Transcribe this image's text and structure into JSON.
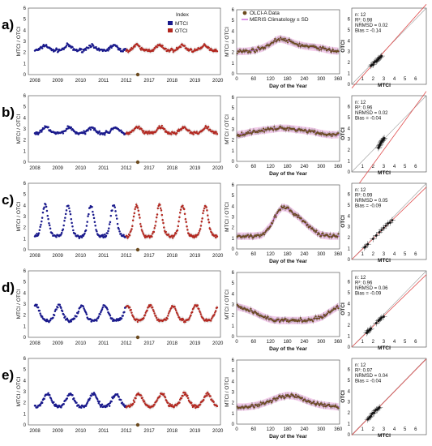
{
  "colors": {
    "mtci": "#1a1a8c",
    "otci": "#b3261e",
    "olci_point": "#6b4a1e",
    "meris_line": "#c44ed6",
    "meris_band": "#f0c0e6",
    "fit_line": "#e05050",
    "one_to_one": "#9a9a9a",
    "panel_border": "#444444"
  },
  "legends": {
    "time_series": {
      "title": "Index",
      "items": [
        "MTCI",
        "OTCI"
      ]
    },
    "climatology": {
      "items": [
        "OLCI-A Data",
        "MERIS Climatology ± SD"
      ]
    }
  },
  "axes": {
    "ts_ylabel": "MTCI / OTCI",
    "clim_ylabel": "MTCI / OTCI",
    "clim_xlabel": "Day of the Year",
    "sc_xlabel": "MTCI",
    "sc_ylabel": "OTCI",
    "ts_yticks": [
      "0",
      "1",
      "2",
      "3",
      "4",
      "5",
      "6"
    ],
    "ts_xticks": [
      "2008",
      "2009",
      "2010",
      "2011",
      "2012",
      "2017",
      "2018",
      "2019",
      "2020"
    ],
    "clim_xticks": [
      "0",
      "60",
      "120",
      "180",
      "240",
      "300",
      "360"
    ],
    "clim_yticks": [
      "0",
      "1",
      "2",
      "3",
      "4",
      "5",
      "6"
    ],
    "sc_ticks": [
      "0",
      "1",
      "2",
      "3",
      "4",
      "5",
      "6"
    ]
  },
  "chart_data": [
    {
      "panel": "a",
      "type": "scatter",
      "stats": {
        "n": "n: 12",
        "r2": "R²: 0.98",
        "nrmsd": "NRMSD = 0.02",
        "bias": "Bias = -0.14"
      },
      "timeseries": {
        "baseline": 2.2,
        "amplitude": 0.45,
        "peak_fraction": 0.45,
        "width_fraction": 0.3,
        "ylim": [
          0,
          6
        ]
      },
      "climatology": {
        "doy": [
          1,
          30,
          60,
          90,
          120,
          150,
          165,
          180,
          210,
          240,
          270,
          300,
          330,
          365
        ],
        "values": [
          2.1,
          2.1,
          2.2,
          2.4,
          2.8,
          3.3,
          3.2,
          3.1,
          2.8,
          2.6,
          2.5,
          2.4,
          2.2,
          2.1
        ]
      },
      "scatter": {
        "x": [
          1.8,
          1.9,
          2.0,
          2.1,
          2.2,
          2.3,
          2.4,
          2.5,
          2.5,
          2.6,
          2.7,
          2.8
        ],
        "y": [
          1.7,
          1.8,
          1.8,
          2.0,
          2.1,
          2.1,
          2.2,
          2.3,
          2.4,
          2.4,
          2.5,
          2.6
        ],
        "fit_slope": 1.1,
        "fit_intercept": -0.35
      }
    },
    {
      "panel": "b",
      "type": "scatter",
      "stats": {
        "n": "n: 12",
        "r2": "R²: 0.96",
        "nrmsd": "NRMSD = 0.02",
        "bias": "Bias = -0.04"
      },
      "timeseries": {
        "baseline": 2.6,
        "amplitude": 0.55,
        "peak_fraction": 0.5,
        "width_fraction": 0.35,
        "ylim": [
          0,
          6
        ]
      },
      "climatology": {
        "doy": [
          1,
          30,
          60,
          90,
          120,
          150,
          180,
          210,
          240,
          270,
          300,
          330,
          365
        ],
        "values": [
          2.5,
          2.6,
          2.8,
          2.9,
          3.0,
          3.1,
          3.1,
          3.0,
          2.9,
          2.8,
          2.6,
          2.5,
          2.5
        ]
      },
      "scatter": {
        "x": [
          2.5,
          2.55,
          2.6,
          2.65,
          2.7,
          2.75,
          2.8,
          2.85,
          2.9,
          2.95,
          3.0,
          3.05
        ],
        "y": [
          2.2,
          2.3,
          2.4,
          2.5,
          2.6,
          2.7,
          2.8,
          2.85,
          2.9,
          3.0,
          3.0,
          3.1
        ],
        "fit_slope": 1.7,
        "fit_intercept": -2.0
      }
    },
    {
      "panel": "c",
      "type": "scatter",
      "stats": {
        "n": "n: 12",
        "r2": "R²: 0.99",
        "nrmsd": "NRMSD = 0.05",
        "bias": "Bias = -0.09"
      },
      "timeseries": {
        "baseline": 1.2,
        "amplitude": 2.8,
        "peak_fraction": 0.45,
        "width_fraction": 0.3,
        "ylim": [
          0,
          6
        ]
      },
      "climatology": {
        "doy": [
          1,
          30,
          60,
          90,
          120,
          140,
          160,
          180,
          200,
          220,
          240,
          270,
          300,
          330,
          365
        ],
        "values": [
          1.2,
          1.2,
          1.2,
          1.3,
          2.2,
          3.2,
          3.9,
          3.8,
          3.4,
          3.0,
          2.5,
          1.8,
          1.3,
          1.2,
          1.2
        ]
      },
      "scatter": {
        "x": [
          1.2,
          1.3,
          1.5,
          2.0,
          2.3,
          2.6,
          2.8,
          3.0,
          3.2,
          3.4,
          3.6,
          3.8
        ],
        "y": [
          1.1,
          1.2,
          1.4,
          1.9,
          2.2,
          2.5,
          2.7,
          2.9,
          3.1,
          3.3,
          3.4,
          3.6
        ],
        "fit_slope": 0.95,
        "fit_intercept": -0.0
      }
    },
    {
      "panel": "d",
      "type": "scatter",
      "stats": {
        "n": "n: 12",
        "r2": "R²: 0.96",
        "nrmsd": "NRMSD = 0.06",
        "bias": "Bias = -0.09"
      },
      "timeseries": {
        "baseline": 1.5,
        "amplitude": 1.4,
        "peak_fraction": 0.05,
        "width_fraction": 0.35,
        "ylim": [
          0,
          6
        ]
      },
      "climatology": {
        "doy": [
          1,
          30,
          60,
          90,
          120,
          150,
          180,
          210,
          240,
          270,
          300,
          330,
          365
        ],
        "values": [
          2.8,
          2.6,
          2.3,
          1.9,
          1.6,
          1.5,
          1.5,
          1.5,
          1.5,
          1.6,
          1.8,
          2.3,
          2.9
        ]
      },
      "scatter": {
        "x": [
          1.4,
          1.5,
          1.5,
          1.6,
          1.7,
          1.8,
          2.3,
          2.5,
          2.6,
          2.7,
          2.8,
          3.0
        ],
        "y": [
          1.3,
          1.4,
          1.5,
          1.5,
          1.6,
          1.7,
          2.2,
          2.4,
          2.5,
          2.6,
          2.7,
          2.8
        ],
        "fit_slope": 0.95,
        "fit_intercept": 0.0
      }
    },
    {
      "panel": "e",
      "type": "scatter",
      "stats": {
        "n": "n: 12",
        "r2": "R²: 0.97",
        "nrmsd": "NRMSD = 0.04",
        "bias": "Bias = -0.04"
      },
      "timeseries": {
        "baseline": 1.6,
        "amplitude": 1.2,
        "peak_fraction": 0.55,
        "width_fraction": 0.4,
        "ylim": [
          0,
          6
        ]
      },
      "climatology": {
        "doy": [
          1,
          30,
          60,
          90,
          120,
          150,
          180,
          210,
          240,
          270,
          300,
          330,
          365
        ],
        "values": [
          1.6,
          1.6,
          1.7,
          1.9,
          2.2,
          2.5,
          2.7,
          2.6,
          2.3,
          2.0,
          1.8,
          1.7,
          1.6
        ]
      },
      "scatter": {
        "x": [
          1.5,
          1.6,
          1.7,
          1.8,
          1.9,
          2.0,
          2.1,
          2.2,
          2.3,
          2.4,
          2.5,
          2.6
        ],
        "y": [
          1.4,
          1.5,
          1.6,
          1.7,
          1.9,
          2.0,
          2.0,
          2.2,
          2.3,
          2.3,
          2.4,
          2.5
        ],
        "fit_slope": 1.0,
        "fit_intercept": -0.05
      }
    }
  ]
}
